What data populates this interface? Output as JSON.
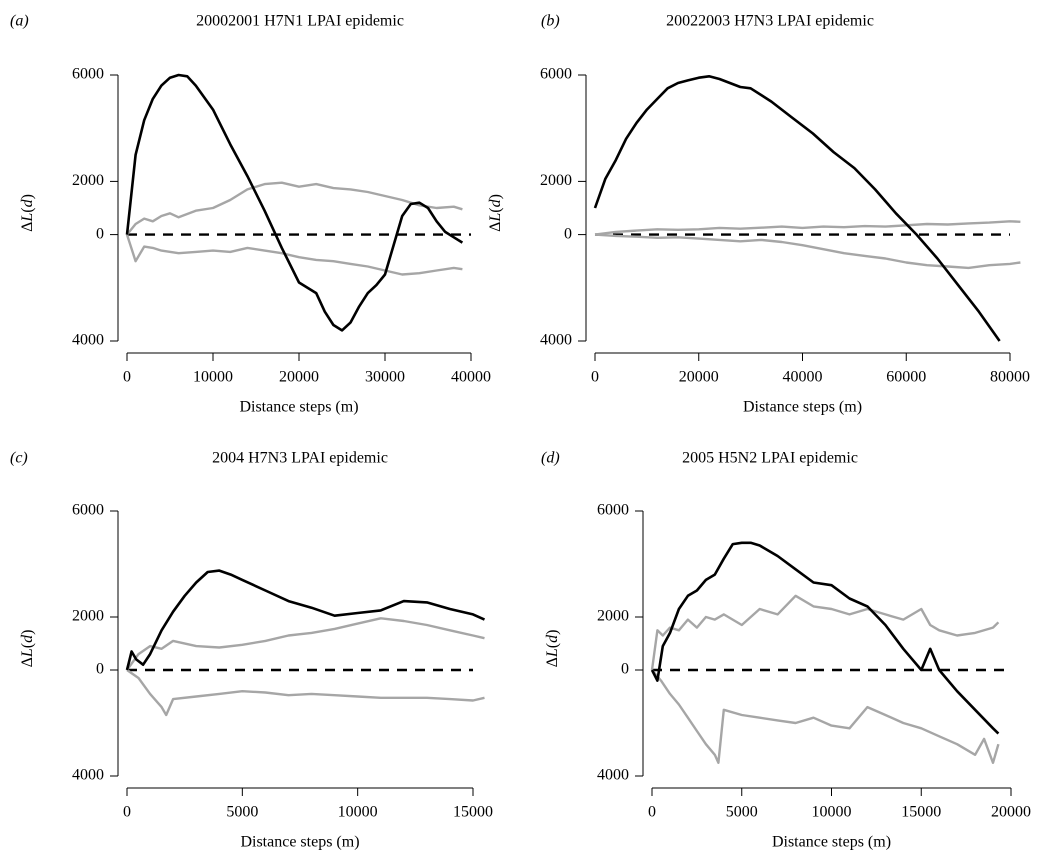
{
  "chart_data": [
    {
      "type": "line",
      "panel": "(a)",
      "title": "20002001 H7N1 LPAI epidemic",
      "xlabel": "Distance steps (m)",
      "ylabel": "ΔL(d)",
      "xlim": [
        0,
        40000
      ],
      "ylim": [
        -4000,
        6000
      ],
      "xticks": [
        0,
        10000,
        20000,
        30000,
        40000
      ],
      "yticks": [
        -4000,
        0,
        2000,
        6000
      ],
      "ytick_labels": [
        "4000",
        "0",
        "2000",
        "6000"
      ],
      "zero_line": true,
      "series": [
        {
          "role": "observed",
          "color": "#000000",
          "x": [
            0,
            1000,
            2000,
            3000,
            4000,
            5000,
            6000,
            7000,
            8000,
            10000,
            12000,
            14000,
            16000,
            18000,
            20000,
            22000,
            23000,
            24000,
            25000,
            26000,
            27000,
            28000,
            29000,
            30000,
            31000,
            32000,
            33000,
            34000,
            35000,
            36000,
            37000,
            38000,
            39000
          ],
          "y": [
            0,
            3000,
            4300,
            5100,
            5600,
            5900,
            6050,
            5950,
            5600,
            4700,
            3400,
            2200,
            900,
            -500,
            -1800,
            -2200,
            -2900,
            -3400,
            -3600,
            -3300,
            -2700,
            -2200,
            -1900,
            -1500,
            -400,
            700,
            1150,
            1200,
            1000,
            500,
            100,
            -100,
            -300
          ]
        },
        {
          "role": "upper envelope",
          "color": "#a6a6a6",
          "x": [
            0,
            1000,
            2000,
            3000,
            4000,
            5000,
            6000,
            8000,
            10000,
            12000,
            14000,
            16000,
            18000,
            20000,
            22000,
            24000,
            26000,
            28000,
            30000,
            32000,
            34000,
            36000,
            38000,
            39000
          ],
          "y": [
            0,
            400,
            600,
            500,
            700,
            800,
            650,
            900,
            1000,
            1300,
            1700,
            1900,
            1950,
            1800,
            1900,
            1750,
            1700,
            1600,
            1450,
            1300,
            1100,
            1000,
            1050,
            950
          ]
        },
        {
          "role": "lower envelope",
          "color": "#a6a6a6",
          "x": [
            0,
            500,
            1000,
            2000,
            3000,
            4000,
            6000,
            8000,
            10000,
            12000,
            14000,
            16000,
            18000,
            20000,
            22000,
            24000,
            26000,
            28000,
            30000,
            32000,
            34000,
            36000,
            38000,
            39000
          ],
          "y": [
            0,
            -500,
            -1000,
            -450,
            -500,
            -600,
            -700,
            -650,
            -600,
            -650,
            -500,
            -600,
            -700,
            -850,
            -950,
            -1000,
            -1100,
            -1200,
            -1350,
            -1500,
            -1450,
            -1350,
            -1250,
            -1300
          ]
        }
      ]
    },
    {
      "type": "line",
      "panel": "(b)",
      "title": "20022003 H7N3 LPAI epidemic",
      "xlabel": "Distance steps (m)",
      "ylabel": "ΔL(d)",
      "xlim": [
        0,
        80000
      ],
      "ylim": [
        -4000,
        6000
      ],
      "xticks": [
        0,
        20000,
        40000,
        60000,
        80000
      ],
      "yticks": [
        -4000,
        0,
        2000,
        6000
      ],
      "ytick_labels": [
        "4000",
        "0",
        "2000",
        "6000"
      ],
      "zero_line": true,
      "series": [
        {
          "role": "observed",
          "color": "#000000",
          "x": [
            0,
            2000,
            4000,
            6000,
            8000,
            10000,
            12000,
            14000,
            16000,
            18000,
            20000,
            22000,
            24000,
            26000,
            28000,
            30000,
            34000,
            38000,
            42000,
            46000,
            50000,
            54000,
            58000,
            62000,
            66000,
            70000,
            74000,
            78000
          ],
          "y": [
            1000,
            2100,
            2800,
            3600,
            4200,
            4700,
            5100,
            5500,
            5700,
            5800,
            5900,
            5950,
            5850,
            5700,
            5550,
            5500,
            5000,
            4400,
            3800,
            3100,
            2500,
            1700,
            800,
            0,
            -900,
            -1900,
            -2900,
            -4000
          ]
        },
        {
          "role": "upper envelope",
          "color": "#a6a6a6",
          "x": [
            0,
            4000,
            8000,
            12000,
            16000,
            20000,
            24000,
            28000,
            32000,
            36000,
            40000,
            44000,
            48000,
            52000,
            56000,
            60000,
            64000,
            68000,
            72000,
            76000,
            80000,
            82000
          ],
          "y": [
            0,
            100,
            150,
            200,
            180,
            200,
            250,
            220,
            260,
            300,
            250,
            300,
            280,
            320,
            300,
            350,
            400,
            380,
            420,
            450,
            500,
            480
          ]
        },
        {
          "role": "lower envelope",
          "color": "#a6a6a6",
          "x": [
            0,
            4000,
            8000,
            12000,
            16000,
            20000,
            24000,
            28000,
            32000,
            36000,
            40000,
            44000,
            48000,
            52000,
            56000,
            60000,
            64000,
            68000,
            72000,
            76000,
            80000,
            82000
          ],
          "y": [
            0,
            -50,
            -80,
            -120,
            -100,
            -150,
            -200,
            -250,
            -200,
            -280,
            -400,
            -550,
            -700,
            -800,
            -900,
            -1050,
            -1150,
            -1200,
            -1250,
            -1150,
            -1100,
            -1050
          ]
        }
      ]
    },
    {
      "type": "line",
      "panel": "(c)",
      "title": "2004 H7N3 LPAI epidemic",
      "xlabel": "Distance steps (m)",
      "ylabel": "ΔL(d)",
      "xlim": [
        0,
        15000
      ],
      "ylim": [
        -4000,
        6000
      ],
      "xticks": [
        0,
        5000,
        10000,
        15000
      ],
      "yticks": [
        -4000,
        0,
        2000,
        6000
      ],
      "ytick_labels": [
        "4000",
        "0",
        "2000",
        "6000"
      ],
      "zero_line": true,
      "series": [
        {
          "role": "observed",
          "color": "#000000",
          "x": [
            0,
            200,
            400,
            700,
            1000,
            1500,
            2000,
            2500,
            3000,
            3500,
            4000,
            4500,
            5000,
            6000,
            7000,
            8000,
            9000,
            10000,
            11000,
            12000,
            13000,
            14000,
            15000,
            15500
          ],
          "y": [
            0,
            700,
            400,
            200,
            600,
            1500,
            2200,
            2800,
            3300,
            3700,
            3750,
            3600,
            3400,
            3000,
            2600,
            2350,
            2050,
            2150,
            2250,
            2600,
            2550,
            2300,
            2100,
            1900
          ]
        },
        {
          "role": "upper envelope",
          "color": "#a6a6a6",
          "x": [
            0,
            500,
            1000,
            1500,
            2000,
            3000,
            4000,
            5000,
            6000,
            7000,
            8000,
            9000,
            10000,
            11000,
            12000,
            13000,
            14000,
            15000,
            15500
          ],
          "y": [
            0,
            600,
            900,
            800,
            1100,
            900,
            850,
            950,
            1100,
            1300,
            1400,
            1550,
            1750,
            1950,
            1850,
            1700,
            1500,
            1300,
            1200
          ]
        },
        {
          "role": "lower envelope",
          "color": "#a6a6a6",
          "x": [
            0,
            500,
            1000,
            1500,
            1700,
            2000,
            3000,
            4000,
            5000,
            6000,
            7000,
            8000,
            9000,
            10000,
            11000,
            12000,
            13000,
            14000,
            15000,
            15500
          ],
          "y": [
            0,
            -300,
            -900,
            -1400,
            -1700,
            -1100,
            -1000,
            -900,
            -800,
            -850,
            -950,
            -900,
            -950,
            -1000,
            -1050,
            -1050,
            -1050,
            -1100,
            -1150,
            -1050
          ]
        }
      ]
    },
    {
      "type": "line",
      "panel": "(d)",
      "title": "2005 H5N2 LPAI epidemic",
      "xlabel": "Distance steps (m)",
      "ylabel": "ΔL(d)",
      "xlim": [
        0,
        20000
      ],
      "ylim": [
        -4000,
        6000
      ],
      "xticks": [
        0,
        5000,
        10000,
        15000,
        20000
      ],
      "yticks": [
        -4000,
        0,
        2000,
        6000
      ],
      "ytick_labels": [
        "4000",
        "0",
        "2000",
        "6000"
      ],
      "zero_line": true,
      "series": [
        {
          "role": "observed",
          "color": "#000000",
          "x": [
            0,
            300,
            600,
            1000,
            1500,
            2000,
            2500,
            3000,
            3500,
            4000,
            4500,
            5000,
            5500,
            6000,
            7000,
            8000,
            9000,
            10000,
            11000,
            12000,
            13000,
            14000,
            15000,
            15500,
            16000,
            17000,
            18000,
            19000,
            19300
          ],
          "y": [
            0,
            -400,
            900,
            1400,
            2300,
            2800,
            3000,
            3400,
            3600,
            4200,
            4750,
            4800,
            4800,
            4700,
            4300,
            3800,
            3300,
            3200,
            2700,
            2400,
            1700,
            800,
            0,
            800,
            0,
            -800,
            -1500,
            -2200,
            -2400
          ]
        },
        {
          "role": "upper envelope",
          "color": "#a6a6a6",
          "x": [
            0,
            300,
            600,
            1000,
            1500,
            2000,
            2500,
            3000,
            3500,
            4000,
            5000,
            6000,
            7000,
            8000,
            9000,
            10000,
            11000,
            12000,
            13000,
            14000,
            15000,
            15500,
            16000,
            17000,
            18000,
            19000,
            19300
          ],
          "y": [
            0,
            1500,
            1300,
            1600,
            1500,
            1900,
            1600,
            2000,
            1900,
            2100,
            1700,
            2300,
            2100,
            2800,
            2400,
            2300,
            2100,
            2300,
            2100,
            1900,
            2300,
            1700,
            1500,
            1300,
            1400,
            1600,
            1800
          ]
        },
        {
          "role": "lower envelope",
          "color": "#a6a6a6",
          "x": [
            0,
            500,
            1000,
            1500,
            2000,
            2500,
            3000,
            3500,
            3700,
            4000,
            5000,
            6000,
            7000,
            8000,
            9000,
            10000,
            11000,
            12000,
            13000,
            14000,
            15000,
            16000,
            17000,
            18000,
            18500,
            19000,
            19300
          ],
          "y": [
            0,
            -400,
            -900,
            -1300,
            -1800,
            -2300,
            -2800,
            -3200,
            -3500,
            -1500,
            -1700,
            -1800,
            -1900,
            -2000,
            -1800,
            -2100,
            -2200,
            -1400,
            -1700,
            -2000,
            -2200,
            -2500,
            -2800,
            -3200,
            -2600,
            -3500,
            -2800
          ]
        }
      ]
    }
  ]
}
